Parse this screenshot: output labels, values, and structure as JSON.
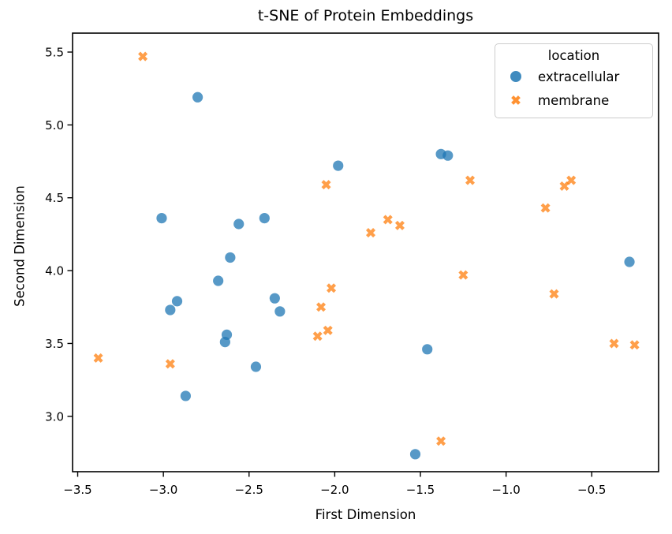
{
  "chart_data": {
    "type": "scatter",
    "title": "t-SNE of Protein Embeddings",
    "xlabel": "First Dimension",
    "ylabel": "Second Dimension",
    "xlim": [
      -3.53,
      -0.11
    ],
    "ylim": [
      2.62,
      5.63
    ],
    "grid": false,
    "frame_color": "#000000",
    "xticks": {
      "values": [
        -3.5,
        -3.0,
        -2.5,
        -2.0,
        -1.5,
        -1.0,
        -0.5
      ],
      "labels": [
        "−3.5",
        "−3.0",
        "−2.5",
        "−2.0",
        "−1.5",
        "−1.0",
        "−0.5"
      ]
    },
    "yticks": {
      "values": [
        5.5,
        5.0,
        4.5,
        4.0,
        3.5,
        3.0
      ],
      "labels": [
        "5.5",
        "5.0",
        "4.5",
        "4.0",
        "3.5",
        "3.0"
      ]
    },
    "legend": {
      "title": "location",
      "position": "upper right",
      "entries": [
        {
          "label": "extracellular",
          "marker": "circle",
          "color": "#1f77b4"
        },
        {
          "label": "membrane",
          "marker": "x",
          "color": "#ff7f0e"
        }
      ]
    },
    "series": [
      {
        "name": "extracellular",
        "marker": "circle",
        "color": "#1f77b4",
        "alpha": 0.75,
        "points": [
          [
            -2.8,
            5.19
          ],
          [
            -1.98,
            4.72
          ],
          [
            -1.38,
            4.8
          ],
          [
            -1.34,
            4.79
          ],
          [
            -3.01,
            4.36
          ],
          [
            -2.41,
            4.36
          ],
          [
            -2.56,
            4.32
          ],
          [
            -2.61,
            4.09
          ],
          [
            -0.28,
            4.06
          ],
          [
            -2.68,
            3.93
          ],
          [
            -2.35,
            3.81
          ],
          [
            -2.92,
            3.79
          ],
          [
            -2.96,
            3.73
          ],
          [
            -2.32,
            3.72
          ],
          [
            -2.63,
            3.56
          ],
          [
            -2.64,
            3.51
          ],
          [
            -1.46,
            3.46
          ],
          [
            -2.46,
            3.34
          ],
          [
            -2.87,
            3.14
          ],
          [
            -1.53,
            2.74
          ]
        ]
      },
      {
        "name": "membrane",
        "marker": "x",
        "color": "#ff7f0e",
        "alpha": 0.75,
        "points": [
          [
            -3.12,
            5.47
          ],
          [
            -1.21,
            4.62
          ],
          [
            -0.62,
            4.62
          ],
          [
            -2.05,
            4.59
          ],
          [
            -0.66,
            4.58
          ],
          [
            -0.77,
            4.43
          ],
          [
            -1.69,
            4.35
          ],
          [
            -1.62,
            4.31
          ],
          [
            -1.79,
            4.26
          ],
          [
            -1.25,
            3.97
          ],
          [
            -2.02,
            3.88
          ],
          [
            -0.72,
            3.84
          ],
          [
            -2.08,
            3.75
          ],
          [
            -2.04,
            3.59
          ],
          [
            -2.1,
            3.55
          ],
          [
            -0.37,
            3.5
          ],
          [
            -0.25,
            3.49
          ],
          [
            -3.38,
            3.4
          ],
          [
            -2.96,
            3.36
          ],
          [
            -1.38,
            2.83
          ]
        ]
      }
    ]
  }
}
